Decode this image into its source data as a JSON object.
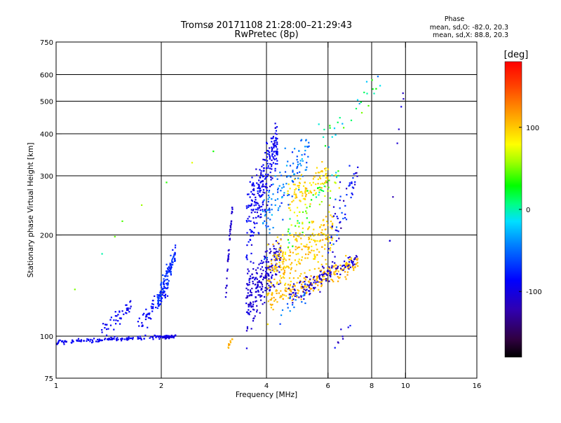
{
  "chart_data": {
    "type": "scatter",
    "title": "Tromsø 20171108 21:28:00–21:29:43",
    "subtitle": "RwPretec (8p)",
    "xlabel": "Frequency [MHz]",
    "ylabel": "Stationary phase Virtual Height [km]",
    "x_scale": "log",
    "y_scale": "log",
    "xlim": [
      1,
      16
    ],
    "ylim": [
      75,
      750
    ],
    "x_ticks": [
      1,
      2,
      4,
      6,
      8,
      10,
      16
    ],
    "x_major_ticks": [
      1,
      2,
      4,
      6,
      8,
      10,
      16
    ],
    "y_ticks": [
      75,
      100,
      200,
      300,
      400,
      500,
      600,
      750
    ],
    "grid": true,
    "stats": {
      "header": "Phase",
      "line_o": "mean, sd,O: -82.0, 20.3",
      "line_x": "mean, sd,X:  88.8, 20.3"
    },
    "colorbar": {
      "label": "[deg]",
      "ticks": [
        {
          "value": 100,
          "label": "100"
        },
        {
          "value": 0,
          "label": "0"
        },
        {
          "value": -100,
          "label": "-100"
        }
      ],
      "range": [
        -180,
        180
      ]
    },
    "clusters": [
      {
        "fmin": 1.0,
        "fmax": 2.2,
        "h0": 96,
        "h1": 100,
        "spread": 2,
        "phase": -95,
        "ps": 15,
        "n": 140
      },
      {
        "fmin": 1.95,
        "fmax": 2.2,
        "h0": 99,
        "h1": 100,
        "spread": 1.5,
        "phase": -105,
        "ps": 10,
        "n": 30
      },
      {
        "fmin": 1.35,
        "fmax": 1.65,
        "h0": 103,
        "h1": 125,
        "spread": 10,
        "phase": -95,
        "ps": 15,
        "n": 45
      },
      {
        "fmin": 1.7,
        "fmax": 2.1,
        "h0": 105,
        "h1": 140,
        "spread": 14,
        "phase": -90,
        "ps": 20,
        "n": 55
      },
      {
        "fmin": 1.95,
        "fmax": 2.2,
        "h0": 125,
        "h1": 175,
        "spread": 16,
        "phase": -75,
        "ps": 20,
        "n": 120
      },
      {
        "fmin": 3.05,
        "fmax": 3.2,
        "h0": 125,
        "h1": 245,
        "spread": 15,
        "phase": -110,
        "ps": 15,
        "n": 40
      },
      {
        "fmin": 3.1,
        "fmax": 3.2,
        "h0": 93,
        "h1": 98,
        "spread": 3,
        "phase": 110,
        "ps": 10,
        "n": 10
      },
      {
        "fmin": 3.5,
        "fmax": 4.4,
        "h0": 125,
        "h1": 175,
        "spread": 40,
        "phase": -110,
        "ps": 20,
        "n": 240
      },
      {
        "fmin": 3.5,
        "fmax": 4.3,
        "h0": 200,
        "h1": 380,
        "spread": 90,
        "phase": -95,
        "ps": 25,
        "n": 260
      },
      {
        "fmin": 3.9,
        "fmax": 5.3,
        "h0": 215,
        "h1": 360,
        "spread": 80,
        "phase": -50,
        "ps": 40,
        "n": 120
      },
      {
        "fmin": 4.0,
        "fmax": 6.2,
        "h0": 150,
        "h1": 210,
        "spread": 50,
        "phase": 100,
        "ps": 25,
        "n": 260
      },
      {
        "fmin": 4.6,
        "fmax": 6.0,
        "h0": 250,
        "h1": 300,
        "spread": 40,
        "phase": 95,
        "ps": 25,
        "n": 100
      },
      {
        "fmin": 4.1,
        "fmax": 7.3,
        "h0": 128,
        "h1": 165,
        "spread": 15,
        "phase": 108,
        "ps": 15,
        "n": 200
      },
      {
        "fmin": 4.6,
        "fmax": 7.3,
        "h0": 130,
        "h1": 170,
        "spread": 15,
        "phase": -110,
        "ps": 20,
        "n": 120
      },
      {
        "fmin": 4.6,
        "fmax": 6.5,
        "h0": 200,
        "h1": 300,
        "spread": 40,
        "phase": 40,
        "ps": 90,
        "n": 60
      },
      {
        "fmin": 6.0,
        "fmax": 7.3,
        "h0": 190,
        "h1": 300,
        "spread": 60,
        "phase": -90,
        "ps": 60,
        "n": 60
      },
      {
        "fmin": 4.2,
        "fmax": 5.2,
        "h0": 110,
        "h1": 135,
        "spread": 15,
        "phase": -50,
        "ps": 30,
        "n": 18
      },
      {
        "fmin": 5.6,
        "fmax": 8.5,
        "h0": 380,
        "h1": 560,
        "spread": 80,
        "phase": 0,
        "ps": 90,
        "n": 30
      },
      {
        "fmin": 6.0,
        "fmax": 7.0,
        "h0": 90,
        "h1": 110,
        "spread": 10,
        "phase": -100,
        "ps": 40,
        "n": 8
      },
      {
        "fmin": 1.1,
        "fmax": 3.0,
        "h0": 120,
        "h1": 380,
        "spread": 20,
        "phase": 40,
        "ps": 60,
        "n": 8
      },
      {
        "fmin": 9.0,
        "fmax": 10.0,
        "h0": 190,
        "h1": 580,
        "spread": 30,
        "phase": -110,
        "ps": 30,
        "n": 8
      }
    ]
  }
}
